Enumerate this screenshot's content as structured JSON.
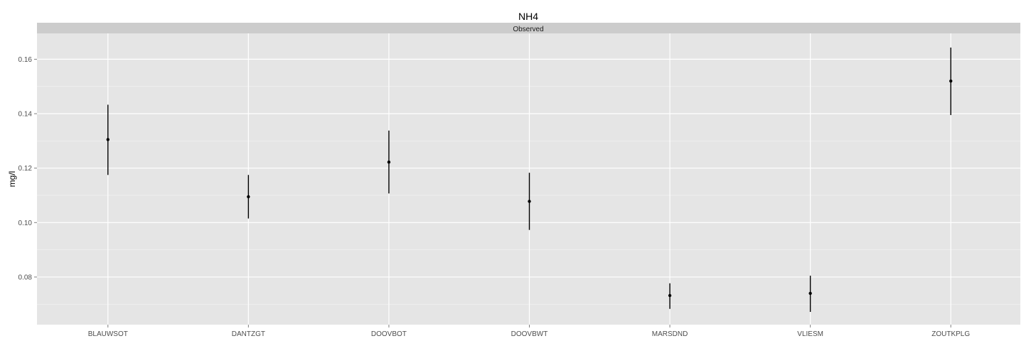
{
  "chart_data": {
    "type": "pointrange",
    "title": "NH4",
    "facet": "Observed",
    "ylabel": "mg/l",
    "xlabel": "",
    "ylim": [
      0.0625,
      0.1695
    ],
    "yticks": [
      0.08,
      0.1,
      0.12,
      0.14,
      0.16
    ],
    "ytick_labels": [
      "0.08",
      "0.10",
      "0.12",
      "0.14",
      "0.16"
    ],
    "categories": [
      "BLAUWSOT",
      "DANTZGT",
      "DOOVBOT",
      "DOOVBWT",
      "MARSDND",
      "VLIESM",
      "ZOUTKPLG"
    ],
    "points": [
      {
        "category": "BLAUWSOT",
        "y": 0.1305,
        "ymin": 0.1175,
        "ymax": 0.1433
      },
      {
        "category": "DANTZGT",
        "y": 0.1095,
        "ymin": 0.1015,
        "ymax": 0.1175
      },
      {
        "category": "DOOVBOT",
        "y": 0.1222,
        "ymin": 0.1107,
        "ymax": 0.1338
      },
      {
        "category": "DOOVBWT",
        "y": 0.1078,
        "ymin": 0.0973,
        "ymax": 0.1183
      },
      {
        "category": "MARSDND",
        "y": 0.0732,
        "ymin": 0.0683,
        "ymax": 0.0777
      },
      {
        "category": "VLIESM",
        "y": 0.074,
        "ymin": 0.0672,
        "ymax": 0.0805
      },
      {
        "category": "ZOUTKPLG",
        "y": 0.152,
        "ymin": 0.1395,
        "ymax": 0.1643
      }
    ],
    "grid": true,
    "legend": "none",
    "colors": {
      "panel_background": "#e5e5e5",
      "strip_background": "#cccccc",
      "grid_major": "#ffffff",
      "grid_minor": "#f2f2f2",
      "point": "#000000"
    }
  }
}
